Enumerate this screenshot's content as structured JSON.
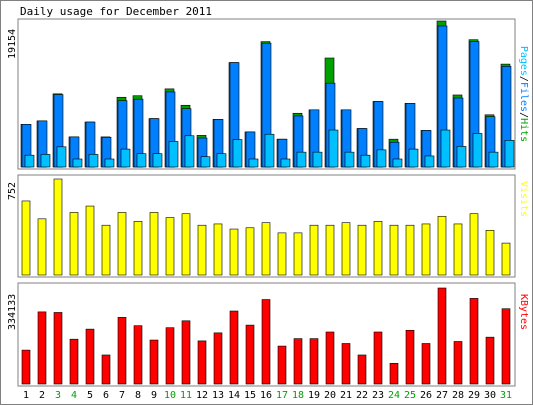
{
  "chart_data": {
    "type": "bar",
    "title": "Daily usage for December 2011",
    "categories": [
      "1",
      "2",
      "3",
      "4",
      "5",
      "6",
      "7",
      "8",
      "9",
      "10",
      "11",
      "12",
      "13",
      "14",
      "15",
      "16",
      "17",
      "18",
      "19",
      "20",
      "21",
      "22",
      "23",
      "24",
      "25",
      "26",
      "27",
      "28",
      "29",
      "30",
      "31"
    ],
    "weekend_days": [
      "3",
      "4",
      "10",
      "11",
      "17",
      "18",
      "24",
      "25",
      "31"
    ],
    "panels": [
      {
        "id": "hits",
        "max_label": "19154",
        "ymax": 19154,
        "legend": [
          "Pages",
          "Files",
          "Hits"
        ],
        "series": [
          {
            "name": "Hits",
            "color": "#00a000",
            "values": [
              5600,
              6050,
              9600,
              3950,
              5900,
              3950,
              9150,
              9350,
              6350,
              10250,
              8100,
              4150,
              6250,
              13700,
              4600,
              16450,
              3650,
              7050,
              7500,
              14300,
              7500,
              5050,
              8600,
              3650,
              8350,
              4800,
              19154,
              9450,
              16700,
              6850,
              13500
            ]
          },
          {
            "name": "Files",
            "color": "#0080ff",
            "values": [
              5600,
              6050,
              9500,
              3950,
              5900,
              3900,
              8700,
              8900,
              6350,
              9850,
              7650,
              3800,
              6250,
              13700,
              4600,
              16250,
              3650,
              6700,
              7500,
              11000,
              7500,
              5050,
              8600,
              3250,
              8350,
              4800,
              18500,
              9050,
              16450,
              6600,
              13200
            ]
          },
          {
            "name": "Pages",
            "color": "#00c0ff",
            "values": [
              1550,
              1650,
              2650,
              1050,
              1650,
              1050,
              2350,
              1750,
              1750,
              3350,
              4100,
              1350,
              1750,
              3600,
              1050,
              4300,
              1050,
              1950,
              1950,
              4850,
              1950,
              1550,
              2250,
              1050,
              2350,
              1450,
              4850,
              2700,
              4400,
              1950,
              3500
            ]
          }
        ]
      },
      {
        "id": "visits",
        "max_label": "752",
        "ymax": 752,
        "legend": [
          "Visits"
        ],
        "series": [
          {
            "name": "Visits",
            "color": "#ffff00",
            "values": [
              580,
              440,
              752,
              490,
              540,
              390,
              490,
              420,
              490,
              450,
              480,
              390,
              400,
              360,
              370,
              410,
              330,
              330,
              390,
              390,
              410,
              390,
              420,
              390,
              390,
              400,
              460,
              400,
              480,
              350,
              250
            ]
          }
        ]
      },
      {
        "id": "kbytes",
        "max_label": "334133",
        "ymax": 334133,
        "legend": [
          "KBytes"
        ],
        "series": [
          {
            "name": "KBytes",
            "color": "#ff0000",
            "values": [
              118000,
              251000,
              249000,
              156000,
              191000,
              101000,
              232000,
              203000,
              153000,
              196000,
              220000,
              150000,
              178000,
              254000,
              205000,
              294000,
              132000,
              158000,
              158000,
              181000,
              141000,
              101000,
              181000,
              72000,
              187000,
              141000,
              334133,
              148000,
              298000,
              163000,
              262000
            ]
          }
        ]
      }
    ]
  }
}
